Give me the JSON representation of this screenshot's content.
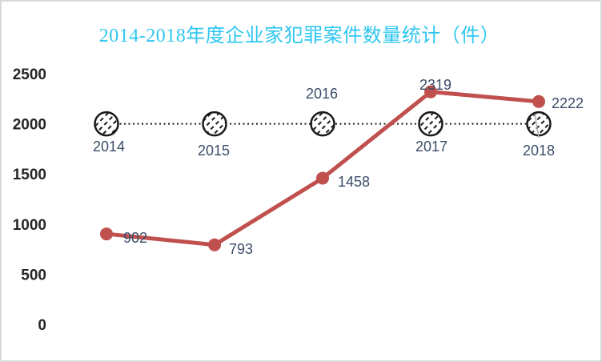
{
  "chart_data": {
    "type": "line",
    "title": "2014-2018年度企业家犯罪案件数量统计（件）",
    "categories": [
      "2014",
      "2015",
      "2016",
      "2017",
      "2018"
    ],
    "series": [
      {
        "name": "cases",
        "values": [
          902,
          793,
          1458,
          2319,
          2222
        ],
        "point_labels": [
          "902",
          "793",
          "1458",
          "2319",
          "2222"
        ],
        "color": "#c0504d"
      }
    ],
    "reference_row": {
      "value": 2000,
      "line_style": "dotted",
      "marker_style": "hatched-circle",
      "marker_color": "#1a1a1a"
    },
    "ylabel": "",
    "xlabel": "",
    "ylim": [
      0,
      2500
    ],
    "yticks": [
      "0",
      "500",
      "1000",
      "1500",
      "2000",
      "2500"
    ],
    "grid": "off",
    "legend": "none",
    "colors": {
      "title": "#2fc7f0",
      "series_line": "#c0504d",
      "data_labels": "#3c4d68",
      "category_labels": "#3c4d68",
      "axis_tick_labels": "#262626",
      "reference_line": "#1a1a1a",
      "frame_border": "#d9d9d9",
      "leader_line": "#b0b0b0"
    }
  }
}
